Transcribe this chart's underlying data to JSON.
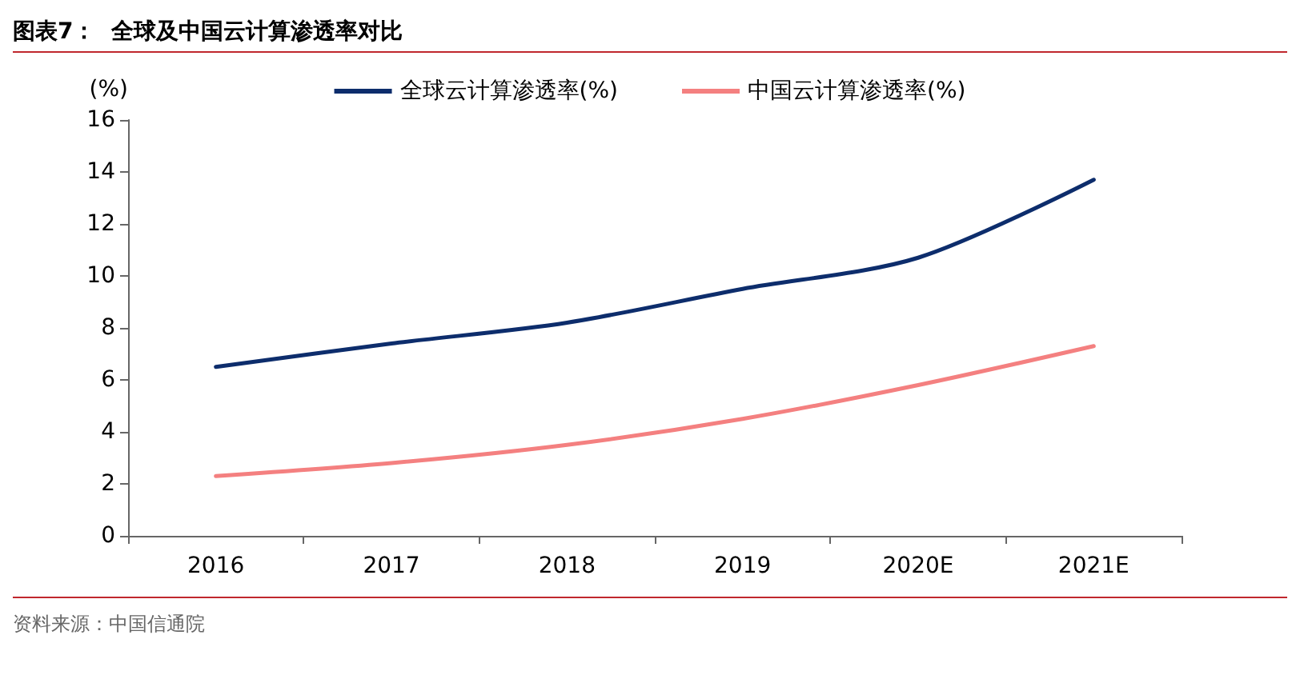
{
  "chart_data": {
    "type": "line",
    "title": "图表7：  全球及中国云计算渗透率对比",
    "ylabel": "(%)",
    "annotations": [
      "资料来源：中国信通院"
    ],
    "categories": [
      "2016",
      "2017",
      "2018",
      "2019",
      "2020E",
      "2021E"
    ],
    "series": [
      {
        "name": "全球云计算渗透率(%)",
        "color": "#0d2d6c",
        "values": [
          6.5,
          7.4,
          8.2,
          9.5,
          10.7,
          13.7
        ]
      },
      {
        "name": "中国云计算渗透率(%)",
        "color": "#f48080",
        "values": [
          2.3,
          2.8,
          3.5,
          4.5,
          5.8,
          7.3
        ]
      }
    ],
    "ylim": [
      0,
      16
    ],
    "yticks": [
      0,
      2,
      4,
      6,
      8,
      10,
      12,
      14,
      16
    ],
    "grid": false,
    "legend": "top",
    "marker": "none",
    "line_style": "solid"
  }
}
